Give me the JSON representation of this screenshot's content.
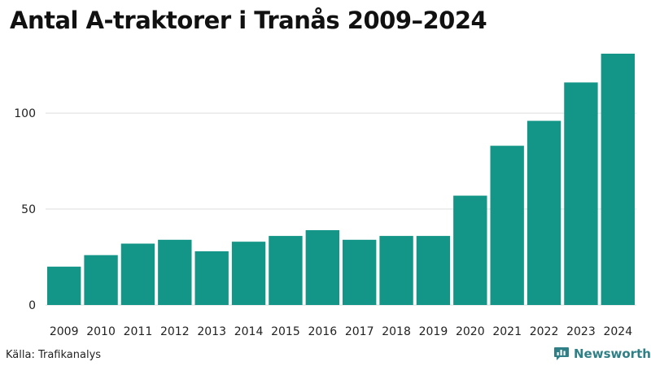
{
  "title": "Antal A-traktorer i Tranås 2009–2024",
  "source": "Källa: Trafikanalys",
  "brand": {
    "name": "Newsworthy",
    "icon": "newsworthy-logo-icon"
  },
  "colors": {
    "bar": "#139687",
    "grid": "#dddddd",
    "brand": "#2f7f86"
  },
  "chart_data": {
    "type": "bar",
    "title": "Antal A-traktorer i Tranås 2009–2024",
    "xlabel": "",
    "ylabel": "",
    "categories": [
      "2009",
      "2010",
      "2011",
      "2012",
      "2013",
      "2014",
      "2015",
      "2016",
      "2017",
      "2018",
      "2019",
      "2020",
      "2021",
      "2022",
      "2023",
      "2024"
    ],
    "values": [
      20,
      26,
      32,
      34,
      28,
      33,
      36,
      39,
      34,
      36,
      36,
      57,
      83,
      96,
      116,
      131
    ],
    "ylim": [
      0,
      131
    ],
    "yticks": [
      0,
      50,
      100
    ],
    "grid": true,
    "legend": "none"
  }
}
